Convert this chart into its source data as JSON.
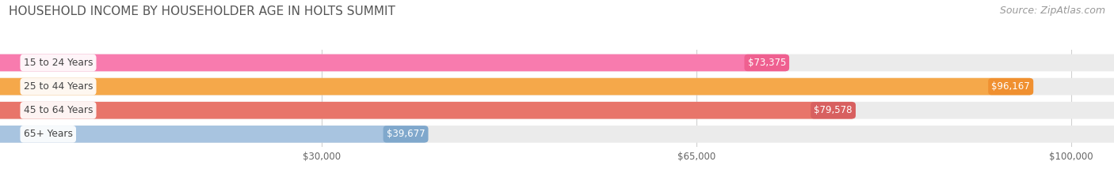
{
  "title": "HOUSEHOLD INCOME BY HOUSEHOLDER AGE IN HOLTS SUMMIT",
  "source": "Source: ZipAtlas.com",
  "categories": [
    "15 to 24 Years",
    "25 to 44 Years",
    "45 to 64 Years",
    "65+ Years"
  ],
  "values": [
    73375,
    96167,
    79578,
    39677
  ],
  "bar_colors": [
    "#F87BAE",
    "#F5A84A",
    "#E8756A",
    "#A8C4E0"
  ],
  "bar_bg_color": "#EBEBEB",
  "val_badge_colors": [
    "#EF6090",
    "#F09030",
    "#D86060",
    "#80A8CC"
  ],
  "title_fontsize": 11,
  "source_fontsize": 9,
  "tick_labels": [
    "$30,000",
    "$65,000",
    "$100,000"
  ],
  "tick_values": [
    30000,
    65000,
    100000
  ],
  "xmax": 100000,
  "bar_height": 0.72,
  "figsize": [
    14.06,
    2.33
  ],
  "dpi": 100,
  "background_color": "#FFFFFF"
}
